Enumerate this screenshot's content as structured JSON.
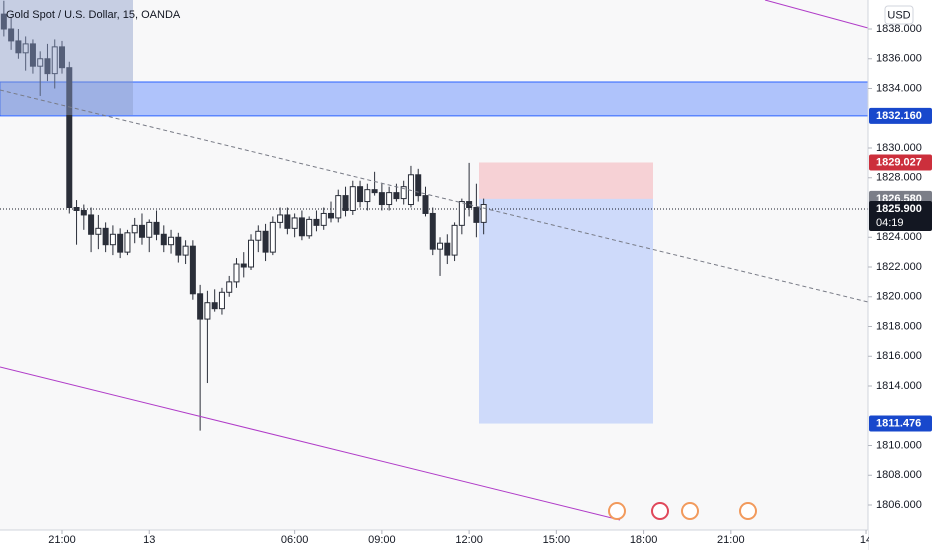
{
  "chart_data": {
    "type": "candlestick",
    "title": "Gold Spot / U.S. Dollar, 15, OANDA",
    "currency": "USD",
    "x": [
      -8,
      -7,
      -6,
      -5,
      -4,
      -3,
      -2,
      -1,
      0,
      1,
      2,
      3,
      4,
      5,
      6,
      7,
      8,
      9,
      10,
      11,
      12,
      13,
      14,
      15,
      16,
      17,
      18,
      19,
      20,
      21,
      22,
      23,
      24,
      25,
      26,
      27,
      28,
      29,
      30,
      31,
      32,
      33,
      34,
      35,
      36,
      37,
      38,
      39,
      40,
      41,
      42,
      43,
      44,
      45,
      46,
      47,
      48,
      49,
      50,
      51,
      52,
      53,
      54,
      55,
      56,
      57,
      58
    ],
    "open": [
      1839,
      1838,
      1837.2,
      1836.4,
      1837,
      1835.5,
      1836,
      1835,
      1836.8,
      1835.4,
      1826,
      1825.8,
      1825.5,
      1824.2,
      1824.6,
      1823.5,
      1824.2,
      1823,
      1824.3,
      1824.8,
      1824,
      1825,
      1824.2,
      1823.5,
      1824,
      1822.8,
      1823.4,
      1820.2,
      1818.5,
      1819.6,
      1819.2,
      1820.3,
      1821,
      1822.2,
      1822,
      1823.8,
      1824.4,
      1823,
      1825,
      1825.5,
      1824.6,
      1825.3,
      1824.1,
      1825.2,
      1824.8,
      1825.6,
      1825.3,
      1826.8,
      1825.8,
      1827.4,
      1826.4,
      1827.2,
      1827,
      1826.2,
      1827,
      1826.6,
      1826.2,
      1828.2,
      1826.8,
      1825.6,
      1823.2,
      1823.6,
      1822.8,
      1824.8,
      1826.4,
      1826,
      1825
    ],
    "high": [
      1839.9,
      1838.8,
      1838,
      1837.5,
      1837.3,
      1836.5,
      1837,
      1837.3,
      1837.2,
      1835.8,
      1826.5,
      1826.2,
      1826,
      1825.5,
      1825,
      1824.8,
      1824.6,
      1824.5,
      1825.3,
      1825.6,
      1825.2,
      1825.8,
      1824.8,
      1824.5,
      1824.3,
      1823.8,
      1823.8,
      1820.8,
      1820.4,
      1820.5,
      1820.6,
      1821.4,
      1822.6,
      1823,
      1824.2,
      1824.8,
      1824.9,
      1825.4,
      1826,
      1826,
      1825.6,
      1825.8,
      1825.4,
      1825.8,
      1826,
      1826.4,
      1827.2,
      1827.4,
      1827.8,
      1827.8,
      1827.6,
      1828.4,
      1827.6,
      1827.4,
      1827.6,
      1827.8,
      1828.8,
      1828.6,
      1827.4,
      1826,
      1824,
      1824.2,
      1825,
      1826.6,
      1829,
      1827.6,
      1826.6
    ],
    "low": [
      1837.5,
      1836.6,
      1836,
      1835.2,
      1835,
      1833.5,
      1834.5,
      1834,
      1835,
      1825.6,
      1823.5,
      1824.5,
      1823,
      1823.2,
      1823,
      1822.8,
      1822.6,
      1822.8,
      1823.6,
      1823.5,
      1823,
      1823.8,
      1823,
      1822.9,
      1822.3,
      1822.2,
      1819.8,
      1811,
      1814.2,
      1819,
      1818.8,
      1820,
      1820.6,
      1821.3,
      1821.8,
      1823,
      1822.4,
      1822.8,
      1824.6,
      1824.2,
      1824,
      1823.8,
      1823.9,
      1824.4,
      1824.5,
      1825,
      1825,
      1825.4,
      1825.5,
      1826,
      1825.8,
      1826.8,
      1825.8,
      1825.8,
      1826.4,
      1826.2,
      1826,
      1826.4,
      1825.4,
      1822.8,
      1821.4,
      1822.2,
      1822.4,
      1824.2,
      1825.4,
      1824,
      1824.2
    ],
    "close": [
      1838,
      1837.2,
      1836.4,
      1837,
      1835.5,
      1836,
      1835,
      1836.8,
      1835.4,
      1826,
      1825.8,
      1825.5,
      1824.2,
      1824.6,
      1823.5,
      1824.2,
      1823,
      1824.3,
      1824.8,
      1824,
      1825,
      1824.2,
      1823.5,
      1824,
      1822.8,
      1823.4,
      1820.2,
      1818.5,
      1819.6,
      1819.2,
      1820.3,
      1821,
      1822.2,
      1822,
      1823.8,
      1824.4,
      1823,
      1825,
      1825.5,
      1824.6,
      1825.3,
      1824.1,
      1825.2,
      1824.8,
      1825.6,
      1825.3,
      1826.8,
      1825.8,
      1827.4,
      1826.4,
      1827.2,
      1827,
      1826.2,
      1827,
      1826.6,
      1827.4,
      1828.2,
      1826.8,
      1825.6,
      1823.2,
      1823.6,
      1822.8,
      1824.8,
      1826.4,
      1826,
      1825,
      1826.2
    ],
    "up_color": "#ffffff",
    "down_color": "#2a2e39",
    "ylim": [
      1804.32,
      1839.95
    ],
    "yticks": [
      {
        "value": 1838,
        "label": "1838.000"
      },
      {
        "value": 1836,
        "label": "1836.000"
      },
      {
        "value": 1834,
        "label": "1834.000"
      },
      {
        "value": 1830,
        "label": "1830.000"
      },
      {
        "value": 1828,
        "label": "1828.000"
      },
      {
        "value": 1824,
        "label": "1824.000"
      },
      {
        "value": 1822,
        "label": "1822.000"
      },
      {
        "value": 1820,
        "label": "1820.000"
      },
      {
        "value": 1818,
        "label": "1818.000"
      },
      {
        "value": 1816,
        "label": "1816.000"
      },
      {
        "value": 1814,
        "label": "1814.000"
      },
      {
        "value": 1810,
        "label": "1810.000"
      },
      {
        "value": 1808,
        "label": "1808.000"
      },
      {
        "value": 1806,
        "label": "1806.000"
      }
    ],
    "xlim": [
      -8.53,
      110.87
    ],
    "xticks": [
      {
        "value": 0,
        "label": "21:00"
      },
      {
        "value": 12,
        "label": "13"
      },
      {
        "value": 32,
        "label": "06:00"
      },
      {
        "value": 44,
        "label": "09:00"
      },
      {
        "value": 56,
        "label": "12:00"
      },
      {
        "value": 68,
        "label": "15:00"
      },
      {
        "value": 80,
        "label": "18:00"
      },
      {
        "value": 92,
        "label": "21:00"
      },
      {
        "value": 110.6,
        "label": "14"
      }
    ],
    "price_labels": [
      {
        "value": 1832.16,
        "label": "1832.160",
        "color": "#1848cc"
      },
      {
        "value": 1829.027,
        "label": "1829.027",
        "color": "#cc2f3c"
      },
      {
        "value": 1826.58,
        "label": "1826.580",
        "color": "#7b7e88"
      },
      {
        "value": 1825.9,
        "label": "1825.900",
        "color": "#131722"
      },
      {
        "value": 1811.476,
        "label": "1811.476",
        "color": "#1848cc"
      }
    ],
    "countdown": "04:19"
  }
}
